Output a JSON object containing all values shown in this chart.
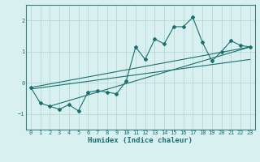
{
  "title": "",
  "xlabel": "Humidex (Indice chaleur)",
  "ylabel": "",
  "bg_color": "#d8f0f0",
  "grid_color": "#b8d8d8",
  "line_color": "#1a7070",
  "spine_color": "#3a8080",
  "xlim": [
    -0.5,
    23.5
  ],
  "ylim": [
    -1.5,
    2.5
  ],
  "yticks": [
    -1,
    0,
    1,
    2
  ],
  "xticks": [
    0,
    1,
    2,
    3,
    4,
    5,
    6,
    7,
    8,
    9,
    10,
    11,
    12,
    13,
    14,
    15,
    16,
    17,
    18,
    19,
    20,
    21,
    22,
    23
  ],
  "series": [
    [
      0,
      -0.15
    ],
    [
      1,
      -0.65
    ],
    [
      2,
      -0.75
    ],
    [
      3,
      -0.85
    ],
    [
      4,
      -0.7
    ],
    [
      5,
      -0.9
    ],
    [
      6,
      -0.3
    ],
    [
      7,
      -0.25
    ],
    [
      8,
      -0.3
    ],
    [
      9,
      -0.35
    ],
    [
      10,
      0.05
    ],
    [
      11,
      1.15
    ],
    [
      12,
      0.75
    ],
    [
      13,
      1.4
    ],
    [
      14,
      1.25
    ],
    [
      15,
      1.8
    ],
    [
      16,
      1.8
    ],
    [
      17,
      2.1
    ],
    [
      18,
      1.3
    ],
    [
      19,
      0.7
    ],
    [
      20,
      1.0
    ],
    [
      21,
      1.35
    ],
    [
      22,
      1.2
    ],
    [
      23,
      1.15
    ]
  ],
  "line1": [
    [
      0,
      -0.15
    ],
    [
      23,
      1.15
    ]
  ],
  "line2": [
    [
      0,
      -0.2
    ],
    [
      23,
      0.75
    ]
  ],
  "line3": [
    [
      2,
      -0.75
    ],
    [
      23,
      1.15
    ]
  ]
}
